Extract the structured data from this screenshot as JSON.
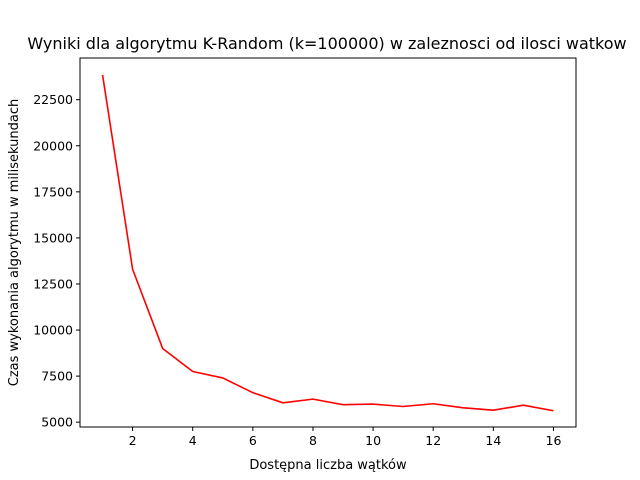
{
  "chart_data": {
    "type": "line",
    "title": "Wyniki dla algorytmu K-Random (k=100000) w zaleznosci od ilosci watkow",
    "xlabel": "Dostępna liczba wątków",
    "ylabel": "Czas wykonania algorytmu w milisekundach",
    "x": [
      1,
      2,
      3,
      4,
      5,
      6,
      7,
      8,
      9,
      10,
      11,
      12,
      13,
      14,
      15,
      16
    ],
    "series": [
      {
        "values": [
          23850,
          13300,
          9000,
          7750,
          7400,
          6600,
          6050,
          6250,
          5950,
          5980,
          5850,
          6000,
          5780,
          5650,
          5920,
          5620
        ],
        "color": "#ff0000"
      }
    ],
    "xlim": [
      0.25,
      16.75
    ],
    "ylim": [
      4738,
      24763
    ],
    "xticks": [
      2,
      4,
      6,
      8,
      10,
      12,
      14,
      16
    ],
    "yticks": [
      5000,
      7500,
      10000,
      12500,
      15000,
      17500,
      20000,
      22500
    ],
    "grid": false,
    "legend": "none"
  }
}
